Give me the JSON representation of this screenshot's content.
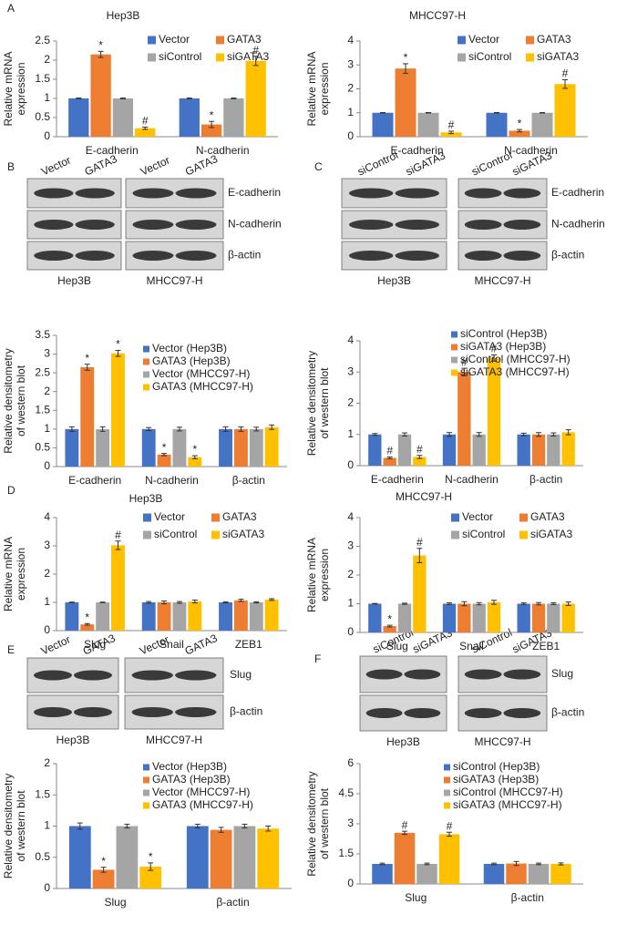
{
  "panel_labels": [
    "A",
    "B",
    "C",
    "D",
    "E",
    "F"
  ],
  "blots": [
    {
      "lanes": [
        [
          "Vector",
          "GATA3"
        ],
        [
          "Vector",
          "GATA3"
        ]
      ],
      "rows": [
        "E-cadherin",
        "N-cadherin",
        "β-actin"
      ],
      "cell_lines": [
        "Hep3B",
        "MHCC97-H"
      ]
    },
    {
      "lanes": [
        [
          "siControl",
          "siGATA3"
        ],
        [
          "siControl",
          "siGATA3"
        ]
      ],
      "rows": [
        "E-cadherin",
        "N-cadherin",
        "β-actin"
      ],
      "cell_lines": [
        "Hep3B",
        "MHCC97-H"
      ]
    },
    {
      "lanes": [
        [
          "Vector",
          "GATA3"
        ],
        [
          "Vector",
          "GATA3"
        ]
      ],
      "rows": [
        "Slug",
        "β-actin"
      ],
      "cell_lines": [
        "Hep3B",
        "MHCC97-H"
      ]
    },
    {
      "lanes": [
        [
          "siControl",
          "siGATA3"
        ],
        [
          "siControl",
          "siGATA3"
        ]
      ],
      "rows": [
        "Slug",
        "β-actin"
      ],
      "cell_lines": [
        "Hep3B",
        "MHCC97-H"
      ]
    }
  ],
  "chart_data": [
    {
      "type": "bar",
      "title": "Hep3B",
      "ylabel": [
        "Relative mRNA",
        "expression"
      ],
      "categories": [
        "E-cadherin",
        "N-cadherin"
      ],
      "ylim": [
        0,
        2.5
      ],
      "yticks": [
        0,
        0.5,
        1,
        1.5,
        2,
        2.5
      ],
      "series": [
        {
          "name": "Vector",
          "color": "#4472c4",
          "values": [
            1,
            1
          ],
          "errors": [
            0.01,
            0.01
          ],
          "markers": [
            null,
            null
          ]
        },
        {
          "name": "GATA3",
          "color": "#ed7d31",
          "values": [
            2.15,
            0.32
          ],
          "errors": [
            0.08,
            0.08
          ],
          "markers": [
            "*",
            "*"
          ]
        },
        {
          "name": "siControl",
          "color": "#a5a5a5",
          "values": [
            1,
            1
          ],
          "errors": [
            0.01,
            0.01
          ],
          "markers": [
            null,
            null
          ]
        },
        {
          "name": "siGATA3",
          "color": "#ffc000",
          "values": [
            0.22,
            1.98
          ],
          "errors": [
            0.03,
            0.12
          ],
          "markers": [
            "#",
            "#"
          ]
        }
      ]
    },
    {
      "type": "bar",
      "title": "MHCC97-H",
      "ylabel": [
        "Relative mRNA",
        "expression"
      ],
      "categories": [
        "E-cadherin",
        "N-cadherin"
      ],
      "ylim": [
        0,
        4
      ],
      "yticks": [
        0,
        1,
        2,
        3,
        4
      ],
      "series": [
        {
          "name": "Vector",
          "color": "#4472c4",
          "values": [
            1,
            1
          ],
          "errors": [
            0.01,
            0.01
          ],
          "markers": [
            null,
            null
          ]
        },
        {
          "name": "GATA3",
          "color": "#ed7d31",
          "values": [
            2.85,
            0.25
          ],
          "errors": [
            0.2,
            0.05
          ],
          "markers": [
            "*",
            "*"
          ]
        },
        {
          "name": "siControl",
          "color": "#a5a5a5",
          "values": [
            1,
            1
          ],
          "errors": [
            0.01,
            0.01
          ],
          "markers": [
            null,
            null
          ]
        },
        {
          "name": "siGATA3",
          "color": "#ffc000",
          "values": [
            0.18,
            2.2
          ],
          "errors": [
            0.05,
            0.18
          ],
          "markers": [
            "#",
            "#"
          ]
        }
      ]
    },
    {
      "type": "bar",
      "ylabel": [
        "Relative densitometry",
        "of western blot"
      ],
      "categories": [
        "E-cadherin",
        "N-cadherin",
        "β-actin"
      ],
      "ylim": [
        0,
        3.5
      ],
      "yticks": [
        0,
        0.5,
        1,
        1.5,
        2,
        2.5,
        3,
        3.5
      ],
      "series": [
        {
          "name": "Vector (Hep3B)",
          "color": "#4472c4",
          "values": [
            1,
            1,
            1
          ],
          "errors": [
            0.06,
            0.04,
            0.06
          ],
          "markers": [
            null,
            null,
            null
          ]
        },
        {
          "name": "GATA3 (Hep3B)",
          "color": "#ed7d31",
          "values": [
            2.65,
            0.32,
            1
          ],
          "errors": [
            0.08,
            0.03,
            0.06
          ],
          "markers": [
            "*",
            "*",
            null
          ]
        },
        {
          "name": "Vector (MHCC97-H)",
          "color": "#a5a5a5",
          "values": [
            1,
            1,
            1
          ],
          "errors": [
            0.06,
            0.05,
            0.05
          ],
          "markers": [
            null,
            null,
            null
          ]
        },
        {
          "name": "GATA3 (MHCC97-H)",
          "color": "#ffc000",
          "values": [
            3.02,
            0.25,
            1.05
          ],
          "errors": [
            0.08,
            0.04,
            0.06
          ],
          "markers": [
            "*",
            "*",
            null
          ]
        }
      ]
    },
    {
      "type": "bar",
      "ylabel": [
        "Relative densitometry",
        "of western blot"
      ],
      "categories": [
        "E-cadherin",
        "N-cadherin",
        "β-actin"
      ],
      "ylim": [
        0,
        4
      ],
      "yticks": [
        0,
        1,
        2,
        3,
        4
      ],
      "series": [
        {
          "name": "siControl (Hep3B)",
          "color": "#4472c4",
          "values": [
            1,
            1,
            1
          ],
          "errors": [
            0.03,
            0.06,
            0.04
          ],
          "markers": [
            null,
            null,
            null
          ]
        },
        {
          "name": "siGATA3 (Hep3B)",
          "color": "#ed7d31",
          "values": [
            0.25,
            3.0,
            1.0
          ],
          "errors": [
            0.03,
            0.12,
            0.06
          ],
          "markers": [
            "#",
            "#",
            null
          ]
        },
        {
          "name": "siControl (MHCC97-H)",
          "color": "#a5a5a5",
          "values": [
            1,
            1,
            1
          ],
          "errors": [
            0.05,
            0.06,
            0.05
          ],
          "markers": [
            null,
            null,
            null
          ]
        },
        {
          "name": "siGATA3 (MHCC97-H)",
          "color": "#ffc000",
          "values": [
            0.28,
            3.45,
            1.07
          ],
          "errors": [
            0.05,
            0.1,
            0.08
          ],
          "markers": [
            "#",
            "#",
            null
          ]
        }
      ]
    },
    {
      "type": "bar",
      "title": "Hep3B",
      "ylabel": [
        "Relative mRNA",
        "expression"
      ],
      "categories": [
        "Slug",
        "Snail",
        "ZEB1"
      ],
      "ylim": [
        0,
        4
      ],
      "yticks": [
        0,
        1,
        2,
        3,
        4
      ],
      "series": [
        {
          "name": "Vector",
          "color": "#4472c4",
          "values": [
            1,
            1,
            1
          ],
          "errors": [
            0.01,
            0.03,
            0.02
          ],
          "markers": [
            null,
            null,
            null
          ]
        },
        {
          "name": "GATA3",
          "color": "#ed7d31",
          "values": [
            0.22,
            1.0,
            1.07
          ],
          "errors": [
            0.03,
            0.05,
            0.04
          ],
          "markers": [
            "*",
            null,
            null
          ]
        },
        {
          "name": "siControl",
          "color": "#a5a5a5",
          "values": [
            1,
            1,
            1
          ],
          "errors": [
            0.01,
            0.03,
            0.02
          ],
          "markers": [
            null,
            null,
            null
          ]
        },
        {
          "name": "siGATA3",
          "color": "#ffc000",
          "values": [
            3.02,
            1.03,
            1.1
          ],
          "errors": [
            0.15,
            0.05,
            0.03
          ],
          "markers": [
            "#",
            null,
            null
          ]
        }
      ]
    },
    {
      "type": "bar",
      "title": "MHCC97-H",
      "ylabel": [
        "Relative mRNA",
        "expression"
      ],
      "categories": [
        "Slug",
        "Snail",
        "ZEB1"
      ],
      "ylim": [
        0,
        4
      ],
      "yticks": [
        0,
        1,
        2,
        3,
        4
      ],
      "series": [
        {
          "name": "Vector",
          "color": "#4472c4",
          "values": [
            1,
            1,
            1
          ],
          "errors": [
            0.01,
            0.03,
            0.03
          ],
          "markers": [
            null,
            null,
            null
          ]
        },
        {
          "name": "GATA3",
          "color": "#ed7d31",
          "values": [
            0.22,
            1.0,
            1.0
          ],
          "errors": [
            0.03,
            0.07,
            0.04
          ],
          "markers": [
            "*",
            null,
            null
          ]
        },
        {
          "name": "siControl",
          "color": "#a5a5a5",
          "values": [
            1,
            1,
            1
          ],
          "errors": [
            0.02,
            0.04,
            0.03
          ],
          "markers": [
            null,
            null,
            null
          ]
        },
        {
          "name": "siGATA3",
          "color": "#ffc000",
          "values": [
            2.68,
            1.05,
            1.0
          ],
          "errors": [
            0.25,
            0.07,
            0.06
          ],
          "markers": [
            "#",
            null,
            null
          ]
        }
      ]
    },
    {
      "type": "bar",
      "ylabel": [
        "Relative densitometry",
        "of western blot"
      ],
      "categories": [
        "Slug",
        "β-actin"
      ],
      "ylim": [
        0,
        2
      ],
      "yticks": [
        0,
        0.5,
        1,
        1.5,
        2
      ],
      "series": [
        {
          "name": "Vector (Hep3B)",
          "color": "#4472c4",
          "values": [
            1,
            1
          ],
          "errors": [
            0.05,
            0.03
          ],
          "markers": [
            null,
            null
          ]
        },
        {
          "name": "GATA3 (Hep3B)",
          "color": "#ed7d31",
          "values": [
            0.3,
            0.94
          ],
          "errors": [
            0.04,
            0.04
          ],
          "markers": [
            "*",
            null
          ]
        },
        {
          "name": "Vector (MHCC97-H)",
          "color": "#a5a5a5",
          "values": [
            1,
            1
          ],
          "errors": [
            0.03,
            0.03
          ],
          "markers": [
            null,
            null
          ]
        },
        {
          "name": "GATA3 (MHCC97-H)",
          "color": "#ffc000",
          "values": [
            0.35,
            0.96
          ],
          "errors": [
            0.06,
            0.04
          ],
          "markers": [
            "*",
            null
          ]
        }
      ]
    },
    {
      "type": "bar",
      "ylabel": [
        "Relative densitometry",
        "of western blot"
      ],
      "categories": [
        "Slug",
        "β-actin"
      ],
      "ylim": [
        0,
        6
      ],
      "yticks": [
        0,
        1.5,
        3,
        4.5,
        6
      ],
      "series": [
        {
          "name": "siControl (Hep3B)",
          "color": "#4472c4",
          "values": [
            1,
            1
          ],
          "errors": [
            0.04,
            0.04
          ],
          "markers": [
            null,
            null
          ]
        },
        {
          "name": "siGATA3 (Hep3B)",
          "color": "#ed7d31",
          "values": [
            2.55,
            1.02
          ],
          "errors": [
            0.08,
            0.1
          ],
          "markers": [
            "#",
            null
          ]
        },
        {
          "name": "siControl (MHCC97-H)",
          "color": "#a5a5a5",
          "values": [
            1,
            1
          ],
          "errors": [
            0.04,
            0.04
          ],
          "markers": [
            null,
            null
          ]
        },
        {
          "name": "siGATA3 (MHCC97-H)",
          "color": "#ffc000",
          "values": [
            2.48,
            1.0
          ],
          "errors": [
            0.1,
            0.05
          ],
          "markers": [
            "#",
            null
          ]
        }
      ]
    }
  ]
}
